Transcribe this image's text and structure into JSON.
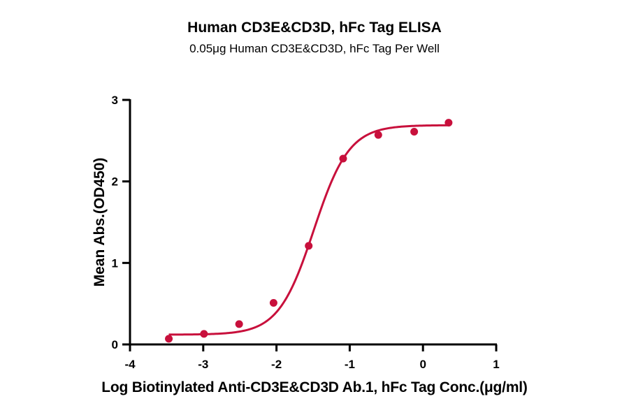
{
  "chart_data": {
    "type": "scatter",
    "title": "Human CD3E&CD3D, hFc Tag ELISA",
    "subtitle": "0.05μg Human CD3E&CD3D,  hFc Tag Per Well",
    "xlabel": "Log Biotinylated Anti-CD3E&CD3D Ab.1, hFc Tag Conc.(μg/ml)",
    "ylabel": "Mean Abs.(OD450)",
    "xlim": [
      -4,
      1
    ],
    "ylim": [
      0,
      3
    ],
    "xticks": [
      -4,
      -3,
      -2,
      -1,
      0,
      1
    ],
    "yticks": [
      0,
      1,
      2,
      3
    ],
    "grid": false,
    "legend": null,
    "series": [
      {
        "name": "Human CD3E&CD3D, hFc Tag",
        "color": "#c8103c",
        "x": [
          -3.47,
          -2.99,
          -2.51,
          -2.04,
          -1.56,
          -1.09,
          -0.61,
          -0.12,
          0.35
        ],
        "y": [
          0.07,
          0.13,
          0.25,
          0.51,
          1.21,
          2.28,
          2.57,
          2.61,
          2.72
        ]
      }
    ],
    "fit": {
      "model": "4PL",
      "bottom": 0.12,
      "top": 2.69,
      "log_ec50": -1.49,
      "hill_slope": 1.8,
      "x_range": [
        -3.47,
        0.33
      ],
      "color": "#c8103c"
    }
  }
}
